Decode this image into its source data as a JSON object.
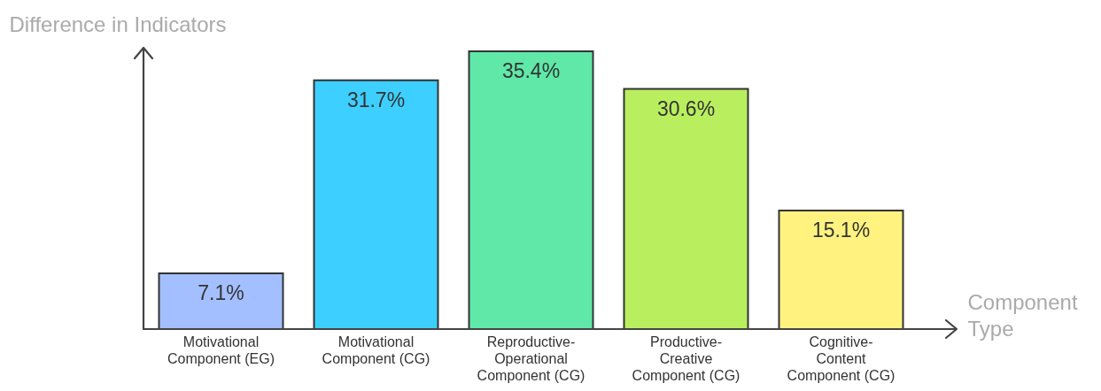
{
  "chart_data": {
    "type": "bar",
    "xlabel": "Component Type",
    "ylabel": "Difference in Indicators",
    "categories": [
      "Motivational Component (EG)",
      "Motivational Component (CG)",
      "Reproductive-Operational Component (CG)",
      "Productive-Creative Component (CG)",
      "Cognitive-Content Component (CG)"
    ],
    "values": [
      7.1,
      31.7,
      35.4,
      30.6,
      15.1
    ],
    "value_labels": [
      "7.1%",
      "31.7%",
      "35.4%",
      "30.6%",
      "15.1%"
    ],
    "colors": [
      "#a3bfff",
      "#3dcfff",
      "#5fe8a8",
      "#b9ef5e",
      "#fff27f"
    ],
    "tick_labels": "x",
    "grid": false,
    "legend": false
  }
}
